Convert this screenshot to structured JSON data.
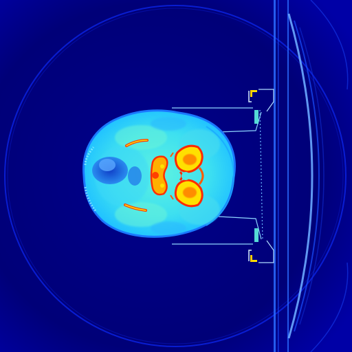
{
  "image": {
    "colormap": "jet",
    "orientation": "rotated-90",
    "colors": {
      "background": "#00007a",
      "field": "#0000c8",
      "ring": "#1a3cff",
      "rail": "#3a8cff",
      "rail_bright": "#9fd8ff",
      "soft_tissue": "#2fd6ff",
      "soft_tissue_light": "#5ef2e0",
      "muscle": "#18b8ff",
      "airway": "#1c6fe0",
      "bone": "#ff2a00",
      "bone_core": "#ffe000",
      "bone_edge": "#ff8c00",
      "mask": "#7ee0ff"
    }
  }
}
